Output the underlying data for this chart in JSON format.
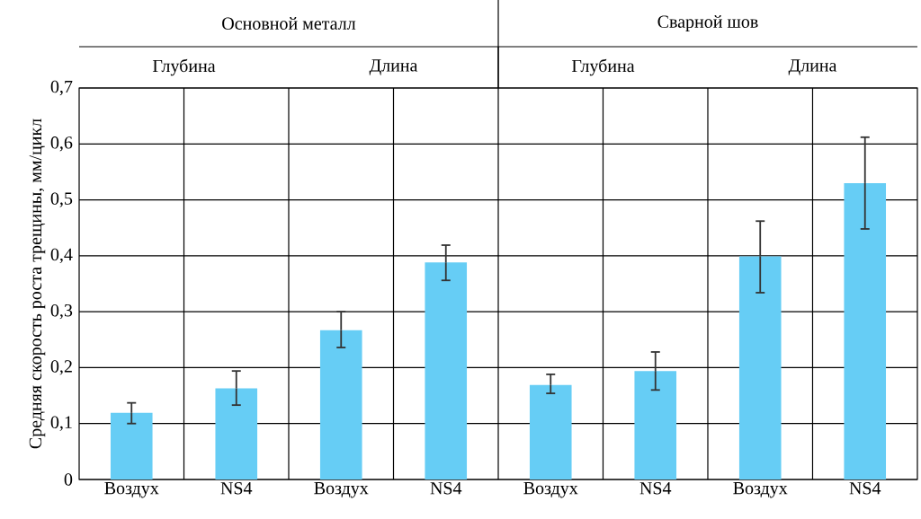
{
  "chart_data": {
    "type": "bar",
    "ylabel": "Средняя скорость роста трещины, мм/цикл",
    "categories": [
      "Воздух",
      "NS4",
      "Воздух",
      "NS4",
      "Воздух",
      "NS4",
      "Воздух",
      "NS4"
    ],
    "values": [
      0.119,
      0.163,
      0.267,
      0.388,
      0.169,
      0.194,
      0.399,
      0.53
    ],
    "errors": [
      [
        0.1,
        0.137
      ],
      [
        0.133,
        0.194
      ],
      [
        0.236,
        0.3
      ],
      [
        0.356,
        0.419
      ],
      [
        0.154,
        0.188
      ],
      [
        0.16,
        0.228
      ],
      [
        0.334,
        0.462
      ],
      [
        0.448,
        0.612
      ]
    ],
    "color": "#66cdf5",
    "ylim": [
      0,
      0.7
    ],
    "yticks": [
      0,
      {
        "value": 0.1,
        "label": "0,1"
      },
      {
        "value": 0.2,
        "label": "0,2"
      },
      {
        "value": 0.3,
        "label": "0,3"
      },
      {
        "value": 0.4,
        "label": "0,4"
      },
      {
        "value": 0.5,
        "label": "0,5"
      },
      {
        "value": 0.6,
        "label": "0,6"
      },
      {
        "value": 0.7,
        "label": "0,7"
      }
    ],
    "grid": true,
    "annotations": [
      "Основной металл",
      "Сварной шов",
      "Глубина",
      "Длина",
      "Глубина",
      "Длина"
    ]
  }
}
